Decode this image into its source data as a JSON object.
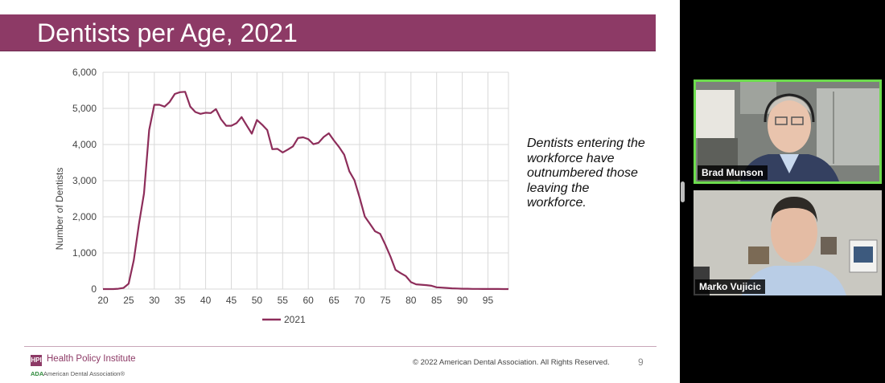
{
  "slide": {
    "title": "Dentists per Age, 2021",
    "caption": "Dentists entering the workforce have outnumbered those leaving the workforce.",
    "footer": {
      "org_logo": "HPI",
      "org_name": "Health Policy Institute",
      "ada_mark": "ADA",
      "ada_name": "American Dental Association®",
      "copyright": "© 2022 American Dental Association. All Rights Reserved.",
      "page_number": "9"
    }
  },
  "chart_data": {
    "type": "line",
    "ylabel": "Number of Dentists",
    "xlim": [
      20,
      99
    ],
    "ylim": [
      0,
      6000
    ],
    "x_ticks": [
      "20",
      "25",
      "30",
      "35",
      "40",
      "45",
      "50",
      "55",
      "60",
      "65",
      "70",
      "75",
      "80",
      "85",
      "90",
      "95"
    ],
    "y_ticks": [
      "0",
      "1,000",
      "2,000",
      "3,000",
      "4,000",
      "5,000",
      "6,000"
    ],
    "grid": true,
    "legend": "bottom",
    "color": "#8d2d5a",
    "series": [
      {
        "name": "2021",
        "x": [
          20,
          21,
          22,
          23,
          24,
          25,
          26,
          27,
          28,
          29,
          30,
          31,
          32,
          33,
          34,
          35,
          36,
          37,
          38,
          39,
          40,
          41,
          42,
          43,
          44,
          45,
          46,
          47,
          48,
          49,
          50,
          51,
          52,
          53,
          54,
          55,
          56,
          57,
          58,
          59,
          60,
          61,
          62,
          63,
          64,
          65,
          66,
          67,
          68,
          69,
          70,
          71,
          72,
          73,
          74,
          75,
          76,
          77,
          78,
          79,
          80,
          81,
          82,
          83,
          84,
          85,
          86,
          87,
          88,
          89,
          90,
          91,
          92,
          93,
          94,
          95,
          96,
          97,
          98,
          99
        ],
        "y": [
          0,
          0,
          0,
          10,
          30,
          150,
          800,
          1800,
          2650,
          4400,
          5100,
          5100,
          5050,
          5180,
          5400,
          5450,
          5460,
          5050,
          4900,
          4850,
          4880,
          4870,
          4980,
          4700,
          4520,
          4520,
          4590,
          4760,
          4530,
          4300,
          4680,
          4550,
          4400,
          3870,
          3880,
          3780,
          3860,
          3950,
          4180,
          4200,
          4150,
          4010,
          4050,
          4210,
          4310,
          4110,
          3930,
          3720,
          3260,
          3010,
          2530,
          2010,
          1810,
          1600,
          1530,
          1230,
          900,
          530,
          440,
          360,
          190,
          130,
          120,
          110,
          90,
          50,
          40,
          30,
          20,
          15,
          10,
          8,
          5,
          4,
          3,
          3,
          2,
          2,
          1,
          1
        ]
      }
    ]
  },
  "participants": [
    {
      "name": "Brad Munson",
      "active_speaker": true
    },
    {
      "name": "Marko Vujicic",
      "active_speaker": false
    }
  ]
}
